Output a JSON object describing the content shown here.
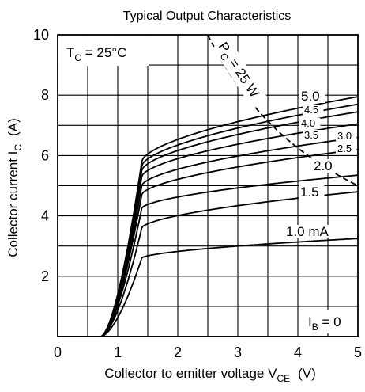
{
  "chart_data": {
    "type": "line",
    "title": "Typical Output Characteristics",
    "xlabel": {
      "main": "Collector to emitter voltage  V",
      "sub": "CE",
      "unit": "(V)"
    },
    "ylabel": {
      "main": "Collector current  I",
      "sub": "C",
      "unit": "(A)"
    },
    "xlim": [
      0,
      5
    ],
    "ylim": [
      0,
      10
    ],
    "x_ticks": [
      "0",
      "1",
      "2",
      "3",
      "4",
      "5"
    ],
    "y_ticks": [
      "2",
      "4",
      "6",
      "8",
      "10"
    ],
    "grid": "on",
    "annotations": {
      "tc": {
        "main": "T",
        "sub": "C",
        "rest": " = 25°C"
      },
      "ib_zero": {
        "main": "I",
        "sub": "B",
        "rest": " = 0"
      },
      "pc": {
        "main": "P",
        "sub": "C",
        "rest": " = 25 W"
      }
    },
    "power_limit": {
      "watts": 25,
      "style": "dashed"
    },
    "series": [
      {
        "name": "1.0 mA",
        "label": "1.0 mA",
        "sat_x": 1.4,
        "sat_y": 2.6,
        "end_y": 3.25
      },
      {
        "name": "1.5",
        "label": "1.5",
        "sat_x": 1.4,
        "sat_y": 3.6,
        "end_y": 4.8
      },
      {
        "name": "2.0",
        "label": "2.0",
        "sat_x": 1.4,
        "sat_y": 4.25,
        "end_y": 5.35
      },
      {
        "name": "2.5",
        "label": "2.5",
        "sat_x": 1.4,
        "sat_y": 4.7,
        "end_y": 6.2
      },
      {
        "name": "3.0",
        "label": "3.0",
        "sat_x": 1.4,
        "sat_y": 5.0,
        "end_y": 6.6
      },
      {
        "name": "3.5",
        "label": "3.5",
        "sat_x": 1.4,
        "sat_y": 5.3,
        "end_y": 7.05
      },
      {
        "name": "4.0",
        "label": "4.0",
        "sat_x": 1.4,
        "sat_y": 5.5,
        "end_y": 7.45
      },
      {
        "name": "4.5",
        "label": "4.5",
        "sat_x": 1.4,
        "sat_y": 5.65,
        "end_y": 7.7
      },
      {
        "name": "5.0",
        "label": "5.0",
        "sat_x": 1.4,
        "sat_y": 5.8,
        "end_y": 7.95
      },
      {
        "name": "0",
        "label": "",
        "sat_x": 0.8,
        "sat_y": 0.0,
        "end_y": 0.0
      }
    ]
  }
}
